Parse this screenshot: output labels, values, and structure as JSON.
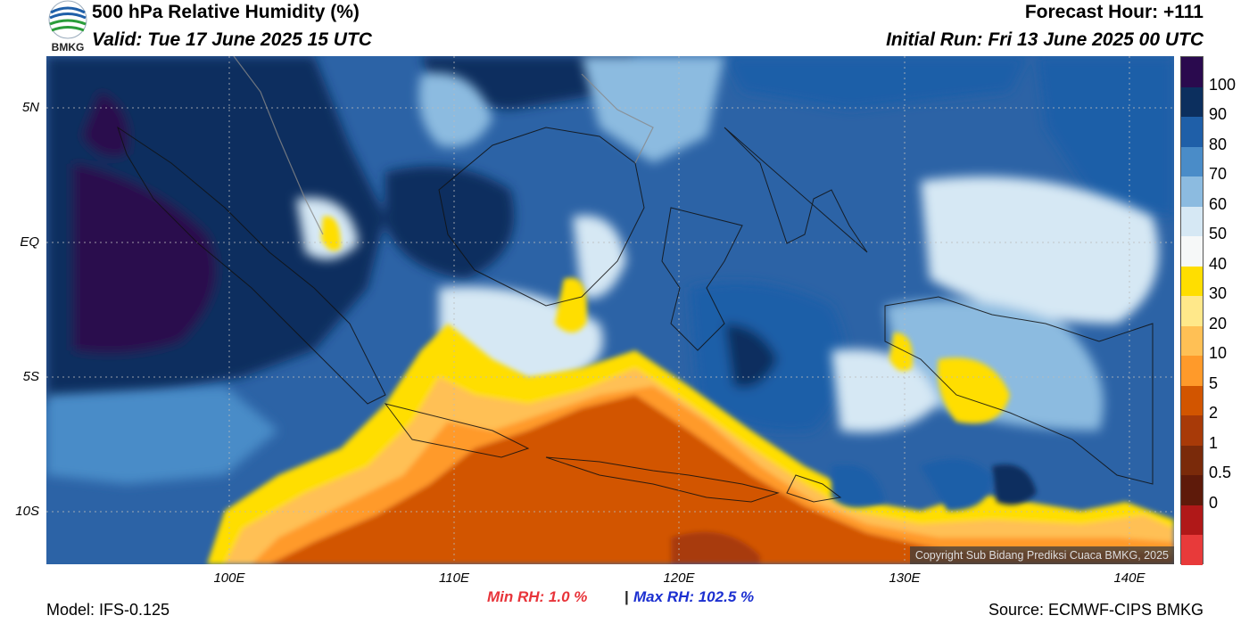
{
  "header": {
    "title": "500 hPa Relative Humidity (%)",
    "valid": "Valid: Tue 17 June 2025 15 UTC",
    "forecast_hour": "Forecast Hour: +111",
    "initial_run": "Initial Run: Fri 13 June 2025 00 UTC"
  },
  "logo": {
    "text": "BMKG"
  },
  "axes": {
    "lat_labels": [
      "5N",
      "EQ",
      "5S",
      "10S"
    ],
    "lon_labels": [
      "100E",
      "110E",
      "120E",
      "130E",
      "140E"
    ]
  },
  "colorbar": {
    "labels": [
      "100",
      "90",
      "80",
      "70",
      "60",
      "50",
      "40",
      "30",
      "20",
      "10",
      "5",
      "2",
      "1",
      "0.5",
      "0"
    ],
    "colors": [
      "#2a0a4e",
      "#0c2f5e",
      "#1f5fa8",
      "#4a8cc8",
      "#8cbbe0",
      "#d6e8f4",
      "#f6f8f8",
      "#ffde00",
      "#ffe88a",
      "#ffc055",
      "#ff9a2a",
      "#d25500",
      "#a83a08",
      "#7a2a0a",
      "#5e1a0a",
      "#b01818",
      "#e83a3a"
    ]
  },
  "map": {
    "colors": {
      "deep_purple": "#2a0a4e",
      "navy": "#0c2f5e",
      "blue": "#1f5fa8",
      "mid_blue": "#4a8cc8",
      "light_blue": "#8cbbe0",
      "pale_blue": "#d6e8f4",
      "white": "#f6f8f8",
      "yellow": "#ffde00",
      "light_orange": "#ffc055",
      "orange": "#ff9a2a",
      "dark_orange": "#d25500",
      "brown": "#a83a08"
    }
  },
  "stats": {
    "min_rh": "Min RH:   1.0 %",
    "separator": "|",
    "max_rh": "Max RH: 102.5 %"
  },
  "footer": {
    "model": "Model: IFS-0.125",
    "source": "Source: ECMWF-CIPS BMKG",
    "copyright": "Copyright Sub Bidang Prediksi Cuaca BMKG, 2025"
  }
}
